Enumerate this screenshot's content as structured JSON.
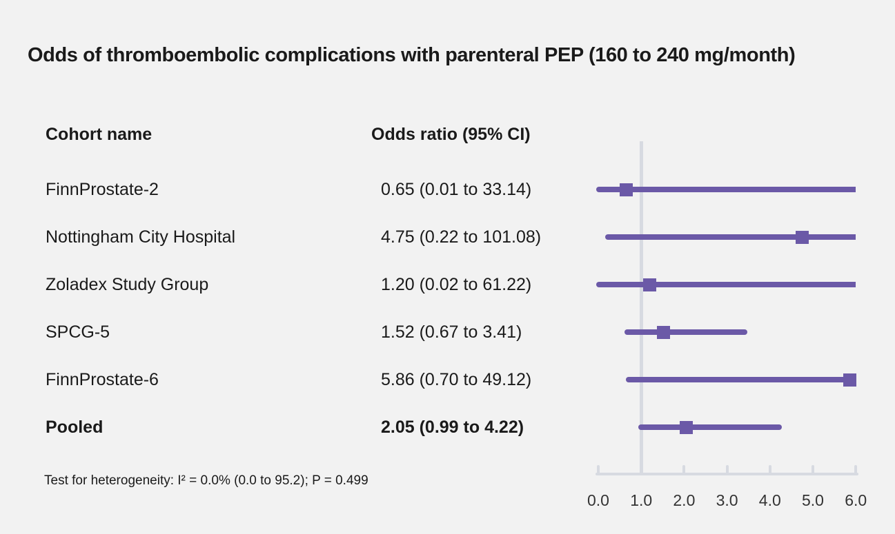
{
  "title": "Odds of thromboembolic complications with parenteral PEP (160 to 240 mg/month)",
  "columns": {
    "cohort": "Cohort name",
    "odds_ratio": "Odds ratio (95% CI)"
  },
  "footnote": "Test for heterogeneity: I² = 0.0% (0.0 to 95.2); P = 0.499",
  "colors": {
    "accent": "#6b59a7",
    "grid": "#d7dae1",
    "text": "#1a1a1a",
    "axis_label": "#333333",
    "background": "#f2f2f2"
  },
  "chart_data": {
    "type": "forest",
    "title": "Odds of thromboembolic complications with parenteral PEP (160 to 240 mg/month)",
    "xlabel": "",
    "ylabel": "",
    "xlim": [
      0,
      6
    ],
    "reference_value": 1.0,
    "legend": "none",
    "grid": "reference-line-only",
    "axis": {
      "ticks": [
        0,
        1,
        2,
        3,
        4,
        5,
        6
      ],
      "tick_labels": [
        "0.0",
        "1.0",
        "2.0",
        "3.0",
        "4.0",
        "5.0",
        "6.0"
      ]
    },
    "rows": [
      {
        "name": "FinnProstate-2",
        "or": 0.65,
        "lo": 0.01,
        "hi": 33.14,
        "ci_label": "0.65 (0.01 to 33.14)",
        "bold": false
      },
      {
        "name": "Nottingham City Hospital",
        "or": 4.75,
        "lo": 0.22,
        "hi": 101.08,
        "ci_label": "4.75 (0.22 to 101.08)",
        "bold": false
      },
      {
        "name": "Zoladex Study Group",
        "or": 1.2,
        "lo": 0.02,
        "hi": 61.22,
        "ci_label": "1.20 (0.02 to 61.22)",
        "bold": false
      },
      {
        "name": "SPCG-5",
        "or": 1.52,
        "lo": 0.67,
        "hi": 3.41,
        "ci_label": "1.52 (0.67 to 3.41)",
        "bold": false
      },
      {
        "name": "FinnProstate-6",
        "or": 5.86,
        "lo": 0.7,
        "hi": 49.12,
        "ci_label": "5.86 (0.70 to 49.12)",
        "bold": false
      },
      {
        "name": "Pooled",
        "or": 2.05,
        "lo": 0.99,
        "hi": 4.22,
        "ci_label": "2.05 (0.99 to 4.22)",
        "bold": true
      }
    ]
  }
}
